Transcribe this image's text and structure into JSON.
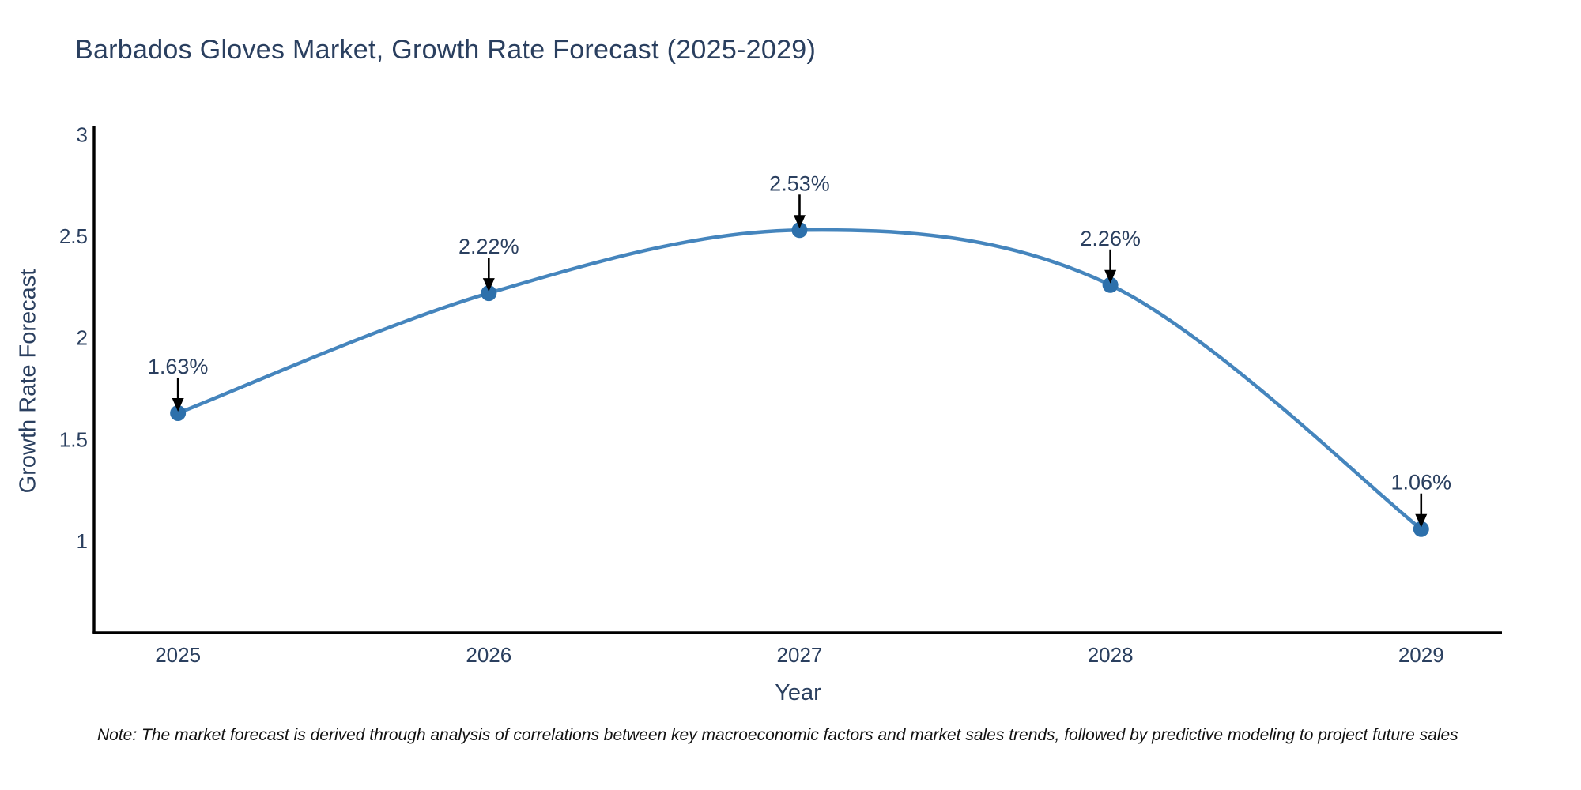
{
  "chart_data": {
    "type": "line",
    "title": "Barbados Gloves Market, Growth Rate Forecast (2025-2029)",
    "xlabel": "Year",
    "ylabel": "Growth Rate Forecast",
    "x": [
      2025,
      2026,
      2027,
      2028,
      2029
    ],
    "y": [
      1.63,
      2.22,
      2.53,
      2.26,
      1.06
    ],
    "point_labels": [
      "1.63%",
      "2.22%",
      "2.53%",
      "2.26%",
      "1.06%"
    ],
    "x_tick_labels": [
      "2025",
      "2026",
      "2027",
      "2028",
      "2029"
    ],
    "y_tick_values": [
      1,
      1.5,
      2,
      2.5,
      3
    ],
    "y_tick_labels": [
      "1",
      "1.5",
      "2",
      "2.5",
      "3"
    ],
    "xlim": [
      2024.73,
      2029.26
    ],
    "ylim": [
      0.55,
      3.04
    ],
    "grid": false,
    "legend": "none",
    "line_shape": "spline",
    "colors": {
      "line": "#4585bd",
      "marker": "#2d70ab",
      "axis_line": "#000000",
      "chart_text": "#2a3f5f",
      "annotation_arrow": "#000000",
      "note_text": "#111111",
      "background": "#ffffff"
    }
  },
  "note": {
    "text": "Note: The market forecast is derived through analysis of correlations between key macroeconomic factors and market sales trends, followed by predictive modeling to project future sales"
  }
}
